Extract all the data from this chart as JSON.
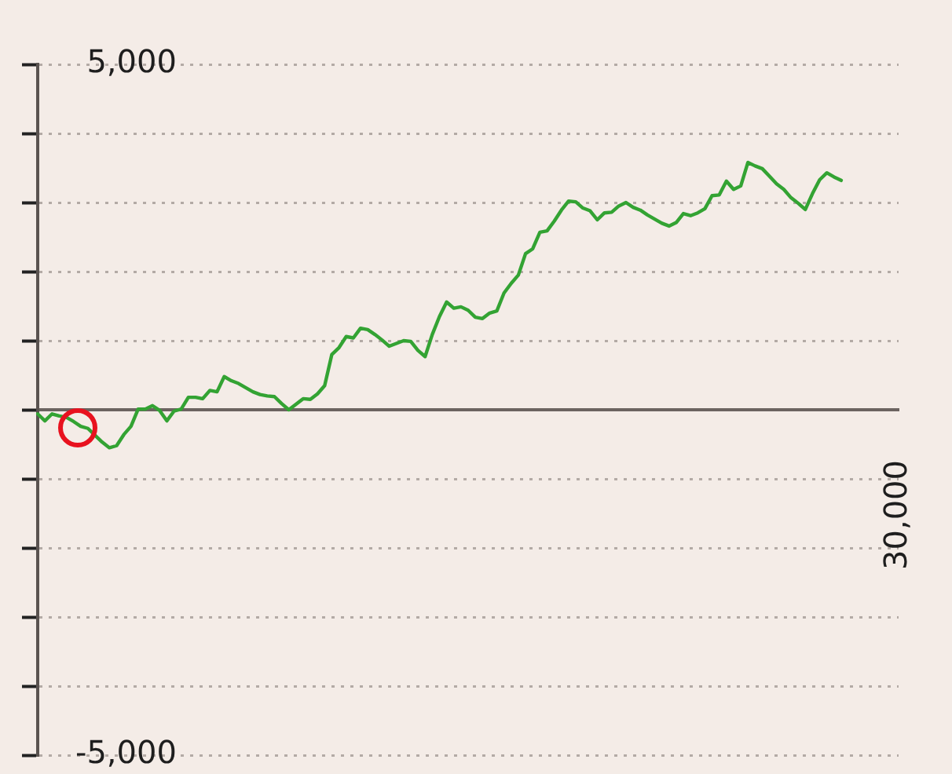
{
  "chart_data": {
    "type": "line",
    "categories": [
      null,
      null,
      null,
      null,
      null,
      null,
      null,
      null,
      null,
      null,
      null,
      null,
      null,
      null,
      null,
      null,
      null,
      null,
      null,
      null,
      null,
      null,
      null,
      null,
      null,
      null,
      null,
      null,
      null,
      null,
      null,
      null,
      null,
      null,
      null,
      null,
      null,
      null,
      null,
      null,
      null,
      null,
      null,
      null,
      null,
      null,
      null,
      null,
      null,
      null,
      null,
      null,
      null,
      null,
      null,
      null,
      null,
      null,
      null,
      null,
      null,
      null,
      null,
      null,
      null,
      null,
      null,
      null,
      null,
      null,
      null,
      null,
      null,
      null,
      null,
      null,
      null,
      null,
      null,
      null,
      null,
      null,
      null,
      null,
      null,
      null,
      null,
      null,
      null,
      null,
      null,
      null,
      null,
      null,
      null,
      null,
      null,
      null,
      null,
      null,
      null,
      null,
      null,
      null,
      null,
      null,
      null,
      null,
      null,
      null,
      null,
      null,
      null,
      null,
      null,
      null,
      null,
      null,
      null,
      null,
      "30,000"
    ],
    "series": [
      {
        "color": "#33a333",
        "values": [
          -60,
          -160,
          -60,
          -90,
          -110,
          -170,
          -240,
          -270,
          -370,
          -470,
          -550,
          -520,
          -360,
          -240,
          10,
          10,
          60,
          -10,
          -160,
          -20,
          10,
          180,
          180,
          160,
          280,
          260,
          480,
          420,
          380,
          320,
          260,
          220,
          200,
          190,
          90,
          0,
          80,
          160,
          150,
          230,
          350,
          800,
          900,
          1060,
          1040,
          1180,
          1160,
          1090,
          1010,
          920,
          960,
          1000,
          990,
          860,
          770,
          1090,
          1350,
          1560,
          1470,
          1490,
          1440,
          1340,
          1320,
          1400,
          1430,
          1690,
          1830,
          1950,
          2260,
          2330,
          2570,
          2590,
          2730,
          2890,
          3020,
          3010,
          2920,
          2880,
          2750,
          2850,
          2860,
          2950,
          3000,
          2930,
          2890,
          2820,
          2760,
          2700,
          2660,
          2710,
          2840,
          2810,
          2850,
          2910,
          3100,
          3110,
          3310,
          3190,
          3240,
          3580,
          3530,
          3490,
          3380,
          3270,
          3190,
          3070,
          2990,
          2900,
          3130,
          3330,
          3430,
          3370,
          3320,
          null,
          null,
          null,
          null,
          null,
          null,
          null,
          null
        ]
      }
    ],
    "ylim": [
      -5000,
      5000
    ],
    "yticks": [
      {
        "value": 5000,
        "label": "5,000"
      },
      {
        "value": 4000,
        "label": null
      },
      {
        "value": 3000,
        "label": null
      },
      {
        "value": 2000,
        "label": null
      },
      {
        "value": 1000,
        "label": null
      },
      {
        "value": 0,
        "label": null
      },
      {
        "value": -1000,
        "label": null
      },
      {
        "value": -2000,
        "label": null
      },
      {
        "value": -3000,
        "label": null
      },
      {
        "value": -4000,
        "label": null
      },
      {
        "value": -5000,
        "label": "-5,000"
      }
    ],
    "grid": "y"
  }
}
